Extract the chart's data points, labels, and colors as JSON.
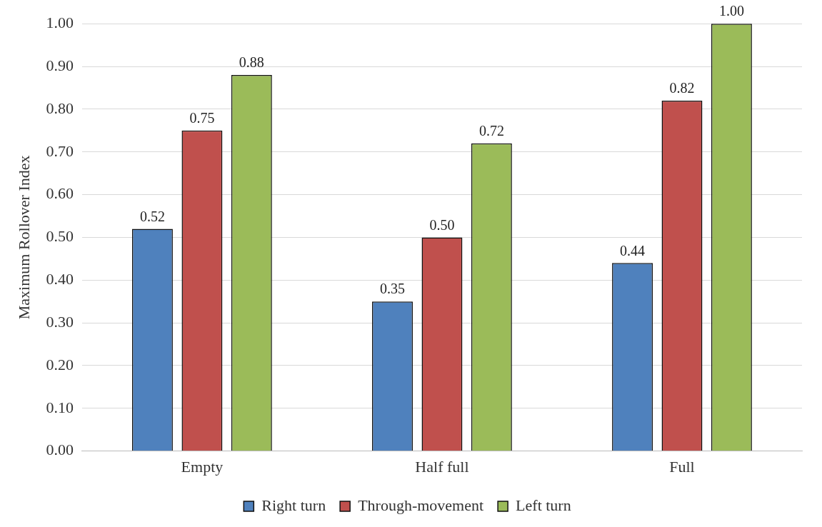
{
  "chart_data": {
    "type": "bar",
    "ylabel": "Maximum Rollover Index",
    "categories": [
      "Empty",
      "Half full",
      "Full"
    ],
    "series": [
      {
        "name": "Right turn",
        "color": "#4f81bd",
        "values": [
          0.52,
          0.35,
          0.44
        ],
        "value_labels": [
          "0.52",
          "0.35",
          "0.44"
        ]
      },
      {
        "name": "Through-movement",
        "color": "#c0504d",
        "values": [
          0.75,
          0.5,
          0.82
        ],
        "value_labels": [
          "0.75",
          "0.50",
          "0.82"
        ]
      },
      {
        "name": "Left turn",
        "color": "#9bbb59",
        "values": [
          0.88,
          0.72,
          1.0
        ],
        "value_labels": [
          "0.88",
          "0.72",
          "1.00"
        ]
      }
    ],
    "ylim": [
      0,
      1
    ],
    "yticks": [
      {
        "value": 0,
        "label": "0.00"
      },
      {
        "value": 0.1,
        "label": "0.10"
      },
      {
        "value": 0.2,
        "label": "0.20"
      },
      {
        "value": 0.3,
        "label": "0.30"
      },
      {
        "value": 0.4,
        "label": "0.40"
      },
      {
        "value": 0.5,
        "label": "0.50"
      },
      {
        "value": 0.6,
        "label": "0.60"
      },
      {
        "value": 0.7,
        "label": "0.70"
      },
      {
        "value": 0.8,
        "label": "0.80"
      },
      {
        "value": 0.9,
        "label": "0.90"
      },
      {
        "value": 1,
        "label": "1.00"
      }
    ],
    "grid": "y",
    "legend": "bottom"
  }
}
